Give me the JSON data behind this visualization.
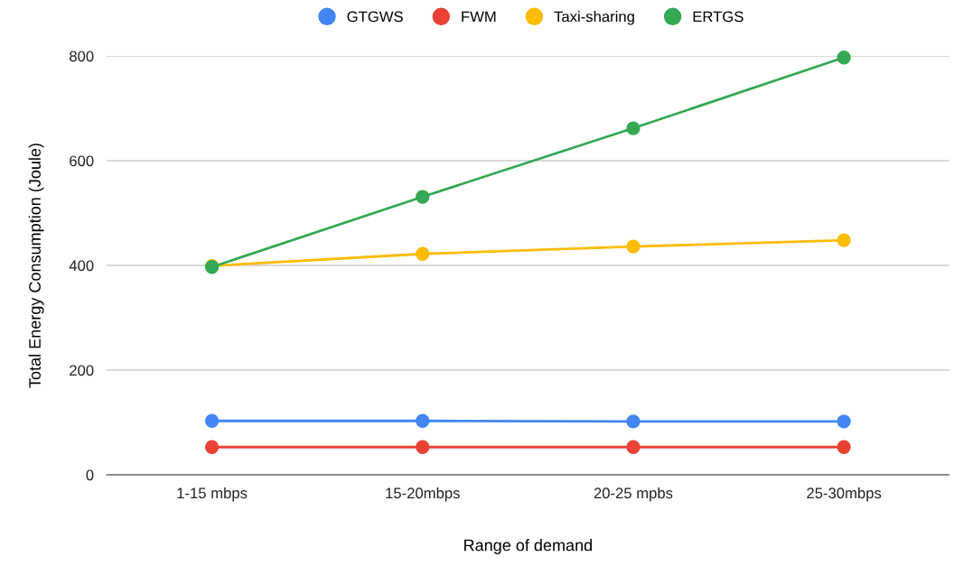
{
  "chart_data": {
    "type": "line",
    "xlabel": "Range of demand",
    "ylabel": "Total Energy Consumption (Joule)",
    "categories": [
      "1-15 mbps",
      "15-20mbps",
      "20-25 mpbs",
      "25-30mbps"
    ],
    "series": [
      {
        "name": "GTGWS",
        "color": "#4285f4",
        "values": [
          103,
          103,
          102,
          102
        ]
      },
      {
        "name": "FWM",
        "color": "#ea4335",
        "values": [
          53,
          53,
          53,
          53
        ]
      },
      {
        "name": "Taxi-sharing",
        "color": "#fbbc04",
        "values": [
          399,
          422,
          436,
          448
        ]
      },
      {
        "name": "ERTGS",
        "color": "#34a853",
        "values": [
          397,
          531,
          662,
          797
        ]
      }
    ],
    "ylim": [
      0,
      800
    ],
    "yticks": [
      0,
      200,
      400,
      600,
      800
    ],
    "grid": "y",
    "legend": "top",
    "marker": "circle",
    "line_style": "solid"
  }
}
